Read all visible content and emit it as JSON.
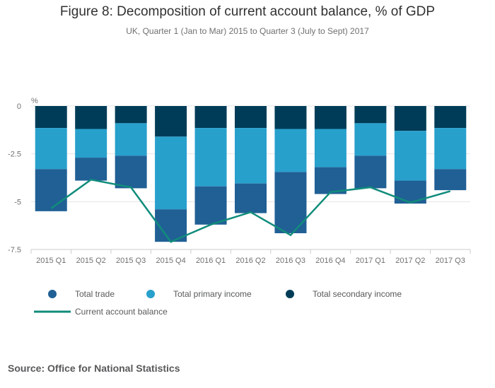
{
  "chart_data": {
    "type": "bar",
    "stacked": true,
    "title": "Figure 8: Decomposition of current account balance, % of GDP",
    "subtitle": "UK, Quarter 1 (Jan to Mar) 2015 to Quarter 3 (July to Sept) 2017",
    "ylabel": "%",
    "ylim": [
      -7.5,
      0
    ],
    "yticks": [
      0,
      -2.5,
      -5,
      -7.5
    ],
    "ytick_labels": [
      "0",
      "-2.5",
      "-5",
      "-7.5"
    ],
    "categories": [
      "2015 Q1",
      "2015 Q2",
      "2015 Q3",
      "2015 Q4",
      "2016 Q1",
      "2016 Q2",
      "2016 Q3",
      "2016 Q4",
      "2017 Q1",
      "2017 Q2",
      "2017 Q3"
    ],
    "series": [
      {
        "name": "Total secondary income",
        "type": "bar",
        "color": "#003c57",
        "values": [
          -1.15,
          -1.2,
          -0.9,
          -1.6,
          -1.15,
          -1.15,
          -1.2,
          -1.2,
          -0.9,
          -1.3,
          -1.15
        ]
      },
      {
        "name": "Total primary income",
        "type": "bar",
        "color": "#27a0cc",
        "values": [
          -2.15,
          -1.5,
          -1.7,
          -3.8,
          -3.05,
          -2.9,
          -2.25,
          -2.0,
          -1.7,
          -2.6,
          -2.15
        ]
      },
      {
        "name": "Total trade",
        "type": "bar",
        "color": "#206095",
        "values": [
          -2.2,
          -1.2,
          -1.7,
          -1.7,
          -2.0,
          -1.55,
          -3.2,
          -1.4,
          -1.7,
          -1.2,
          -1.1
        ]
      },
      {
        "name": "Current account balance",
        "type": "line",
        "color": "#118c7b",
        "values": [
          -5.35,
          -3.85,
          -4.25,
          -7.1,
          -6.2,
          -5.55,
          -6.75,
          -4.5,
          -4.25,
          -5.05,
          -4.45
        ]
      }
    ],
    "legend_order": [
      "Total trade",
      "Total primary income",
      "Total secondary income",
      "Current account balance"
    ],
    "legend_placement": "bottom",
    "grid": true
  },
  "source": "Source: Office for National Statistics"
}
